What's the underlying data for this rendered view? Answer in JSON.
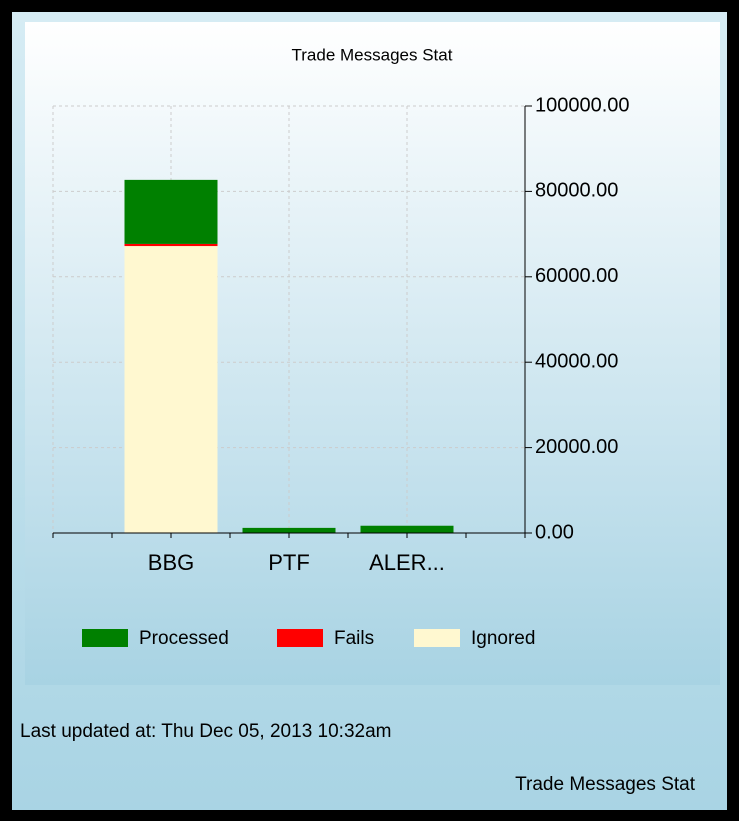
{
  "chart_data": {
    "type": "bar",
    "title": "Trade Messages Stat",
    "categories": [
      "BBG",
      "PTF",
      "ALER..."
    ],
    "series": [
      {
        "name": "Processed",
        "color": "#008000",
        "values": [
          15000,
          1200,
          1700
        ]
      },
      {
        "name": "Fails",
        "color": "#ff0000",
        "values": [
          500,
          0,
          0
        ]
      },
      {
        "name": "Ignored",
        "color": "#fff8d0",
        "values": [
          67200,
          0,
          0
        ]
      }
    ],
    "stack_order": [
      "Ignored",
      "Fails",
      "Processed"
    ],
    "ylim": [
      0,
      100000
    ],
    "yticks": [
      {
        "value": 0,
        "label": "0.00"
      },
      {
        "value": 20000,
        "label": "20000.00"
      },
      {
        "value": 40000,
        "label": "40000.00"
      },
      {
        "value": 60000,
        "label": "60000.00"
      },
      {
        "value": 80000,
        "label": "80000.00"
      },
      {
        "value": 100000,
        "label": "100000.00"
      }
    ],
    "grid": true,
    "legend": "bottom"
  },
  "status": "Last updated at: Thu Dec 05, 2013 10:32am",
  "caption": "Trade Messages Stat"
}
